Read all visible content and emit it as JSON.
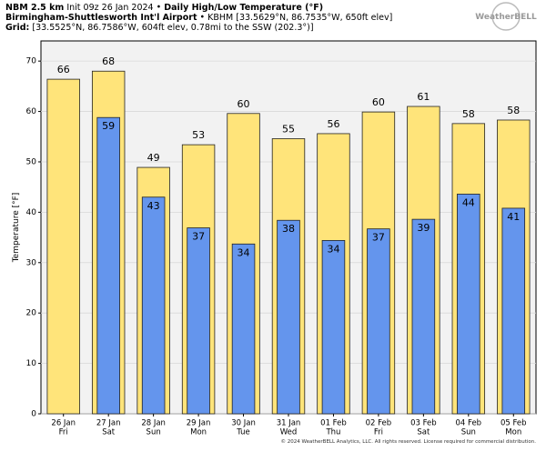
{
  "chart_data": {
    "type": "bar",
    "header": {
      "model": "NBM 2.5 km",
      "init": "Init 09z 26 Jan 2024",
      "title": "Daily High/Low Temperature (°F)",
      "station": "Birmingham-Shuttlesworth Int'l Airport",
      "station_info": "KBHM [33.5629°N, 86.7535°W, 650ft elev]",
      "grid_label": "Grid:",
      "grid_info": "[33.5525°N, 86.7586°W, 604ft elev, 0.78mi to the SSW (202.3°)]"
    },
    "logo": "WeatherBELL",
    "footer": "© 2024 WeatherBELL Analytics, LLC. All rights reserved. License required for commercial distribution.",
    "ylabel": "Temperature [°F]",
    "categories": [
      "26 Jan",
      "27 Jan",
      "28 Jan",
      "29 Jan",
      "30 Jan",
      "31 Jan",
      "01 Feb",
      "02 Feb",
      "03 Feb",
      "04 Feb",
      "05 Feb"
    ],
    "category_days": [
      "Fri",
      "Sat",
      "Sun",
      "Mon",
      "Tue",
      "Wed",
      "Thu",
      "Fri",
      "Sat",
      "Sun",
      "Mon"
    ],
    "series": [
      {
        "color": "#ffe47a",
        "values": [
          66.4,
          68.0,
          48.9,
          53.4,
          59.6,
          54.6,
          55.6,
          59.9,
          61.0,
          57.6,
          58.3
        ],
        "value_labels": [
          "66",
          "68",
          "49",
          "53",
          "60",
          "55",
          "56",
          "60",
          "61",
          "58",
          "58"
        ]
      },
      {
        "color": "#6495ed",
        "values": [
          null,
          58.8,
          43.0,
          36.9,
          33.7,
          38.4,
          34.4,
          36.7,
          38.6,
          43.6,
          40.8
        ],
        "value_labels": [
          null,
          "59",
          "43",
          "37",
          "34",
          "38",
          "34",
          "37",
          "39",
          "44",
          "41"
        ]
      }
    ],
    "ylim": [
      0,
      74
    ],
    "yticks": [
      0,
      10,
      20,
      30,
      40,
      50,
      60,
      70
    ],
    "grid": true
  }
}
